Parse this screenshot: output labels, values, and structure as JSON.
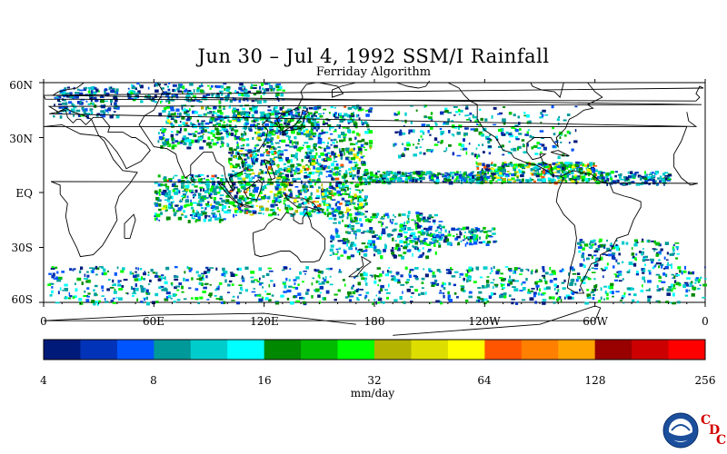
{
  "header": {
    "title": "Jun 30 – Jul 4, 1992 SSM/I Rainfall",
    "subtitle": "Ferriday Algorithm"
  },
  "map": {
    "lat_labels": [
      "60N",
      "30N",
      "EQ",
      "30S",
      "60S"
    ],
    "lon_labels": [
      "0",
      "60E",
      "120E",
      "180",
      "120W",
      "60W",
      "0"
    ],
    "background": "#ffffff",
    "coastline_color": "#000000"
  },
  "colorbar": {
    "colors": [
      "#001a7a",
      "#0033b8",
      "#0055ff",
      "#009999",
      "#00cccc",
      "#00ffff",
      "#008800",
      "#00bb00",
      "#00ff00",
      "#b3b300",
      "#dddd00",
      "#ffff00",
      "#ff5500",
      "#ff7f00",
      "#ffa500",
      "#990000",
      "#cc0000",
      "#ff0000"
    ],
    "tick_labels": [
      "4",
      "8",
      "16",
      "32",
      "64",
      "128",
      "256"
    ],
    "unit": "mm/day"
  },
  "logo": {
    "name": "NOAA",
    "letters": [
      "C",
      "D",
      "C"
    ]
  }
}
